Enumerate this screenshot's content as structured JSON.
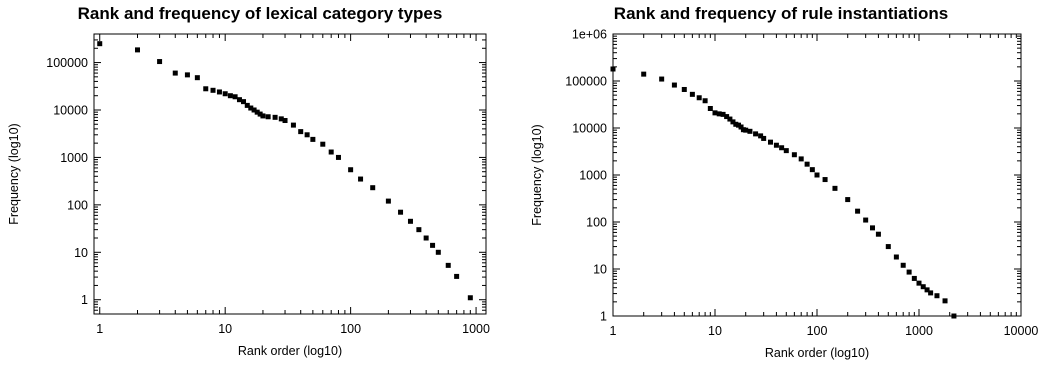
{
  "chart_data": [
    {
      "type": "scatter",
      "title": "Rank and frequency of lexical category types",
      "xlabel": "Rank order (log10)",
      "ylabel": "Frequency (log10)",
      "xscale": "log",
      "yscale": "log",
      "xlim": [
        0.9,
        1200
      ],
      "ylim": [
        0.5,
        400000
      ],
      "xticks": [
        "1",
        "10",
        "100",
        "1000"
      ],
      "yticks": [
        "1",
        "10",
        "100",
        "1000",
        "10000",
        "100000"
      ],
      "grid": false,
      "legend": "none",
      "marker_color": "#000000",
      "x": [
        1,
        2,
        3,
        4,
        5,
        6,
        7,
        8,
        9,
        10,
        11,
        12,
        13,
        14,
        15,
        16,
        17,
        18,
        19,
        20,
        22,
        25,
        28,
        30,
        35,
        40,
        45,
        50,
        60,
        70,
        80,
        100,
        120,
        150,
        200,
        250,
        300,
        350,
        400,
        450,
        500,
        600,
        700,
        900
      ],
      "y": [
        250000,
        185000,
        105000,
        60000,
        55000,
        48000,
        28000,
        26000,
        24000,
        22000,
        20000,
        19000,
        16500,
        15000,
        12500,
        11000,
        10000,
        9000,
        8200,
        7500,
        7200,
        7000,
        6500,
        6000,
        4800,
        3500,
        3000,
        2400,
        1900,
        1300,
        1000,
        550,
        350,
        230,
        120,
        70,
        45,
        30,
        20,
        14,
        10,
        5.3,
        3.1,
        1.1
      ]
    },
    {
      "type": "scatter",
      "title": "Rank and frequency of rule instantiations",
      "xlabel": "Rank order (log10)",
      "ylabel": "Frequency (log10)",
      "xscale": "log",
      "yscale": "log",
      "xlim": [
        1,
        10000
      ],
      "ylim": [
        1,
        1000000
      ],
      "xticks": [
        "1",
        "10",
        "100",
        "1000",
        "10000"
      ],
      "yticks": [
        "1",
        "10",
        "100",
        "1000",
        "10000",
        "100000",
        "1e+06"
      ],
      "grid": false,
      "legend": "none",
      "marker_color": "#000000",
      "x": [
        1,
        2,
        3,
        4,
        5,
        6,
        7,
        8,
        9,
        10,
        11,
        12,
        13,
        14,
        15,
        16,
        17,
        18,
        19,
        20,
        22,
        25,
        28,
        30,
        35,
        40,
        45,
        50,
        60,
        70,
        80,
        90,
        100,
        120,
        150,
        200,
        250,
        300,
        350,
        400,
        500,
        600,
        700,
        800,
        900,
        1000,
        1100,
        1200,
        1300,
        1500,
        1800,
        2200
      ],
      "y": [
        180000,
        140000,
        110000,
        82000,
        66000,
        52000,
        44000,
        38000,
        26000,
        21000,
        20000,
        19500,
        17500,
        15500,
        13500,
        12000,
        11500,
        10500,
        9200,
        9000,
        8500,
        7500,
        6800,
        6000,
        5000,
        4300,
        3800,
        3300,
        2700,
        2200,
        1700,
        1300,
        1000,
        800,
        520,
        300,
        170,
        110,
        75,
        55,
        30,
        18,
        12,
        8.6,
        6.3,
        5,
        4.2,
        3.6,
        3.1,
        2.7,
        2.1,
        1
      ]
    }
  ]
}
